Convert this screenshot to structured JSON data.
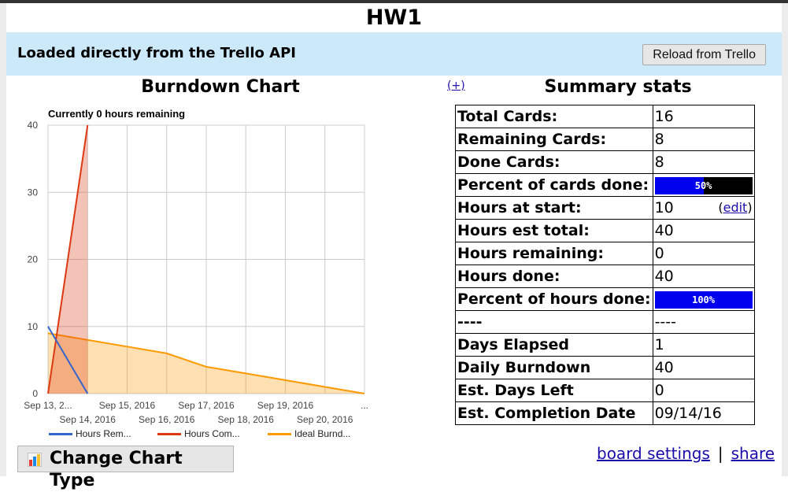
{
  "page": {
    "title": "HW1"
  },
  "banner": {
    "text": "Loaded directly from the Trello API",
    "reload_label": "Reload from Trello"
  },
  "burndown": {
    "title": "Burndown Chart",
    "plus_label": "(+)"
  },
  "summary": {
    "title": "Summary stats",
    "rows": [
      {
        "key": "Total Cards:",
        "value": "16"
      },
      {
        "key": "Remaining Cards:",
        "value": "8"
      },
      {
        "key": "Done Cards:",
        "value": "8"
      },
      {
        "key": "Percent of cards done:",
        "bar_label": "50%",
        "bar_fraction": 0.5
      },
      {
        "key": "Hours at start:",
        "value": "10",
        "edit_label": "edit"
      },
      {
        "key": "Hours est total:",
        "value": "40"
      },
      {
        "key": "Hours remaining:",
        "value": "0"
      },
      {
        "key": "Hours done:",
        "value": "40"
      },
      {
        "key": "Percent of hours done:",
        "bar_label": "100%",
        "bar_fraction": 1.0
      },
      {
        "key": "----",
        "value": "----"
      },
      {
        "key": "Days Elapsed",
        "value": "1"
      },
      {
        "key": "Daily Burndown",
        "value": "40"
      },
      {
        "key": "Est. Days Left",
        "value": "0"
      },
      {
        "key": "Est. Completion Date",
        "value": "09/14/16"
      }
    ]
  },
  "footer": {
    "change_chart_label": "Change Chart Type",
    "board_settings_label": "board settings",
    "separator": "|",
    "share_label": "share"
  },
  "colors": {
    "hours_remaining": "#3366cc",
    "hours_completed": "#dc3912",
    "ideal": "#ff9900",
    "banner": "#cce9f9"
  },
  "chart_data": {
    "type": "area",
    "title": "Currently 0 hours remaining",
    "ylim": [
      0,
      40
    ],
    "yticks": [
      0,
      10,
      20,
      30,
      40
    ],
    "xtick_labels_row1": [
      "Sep 13, 2...",
      "Sep 15, 2016",
      "Sep 17, 2016",
      "Sep 19, 2016",
      "..."
    ],
    "xtick_labels_row2": [
      "Sep 14, 2016",
      "Sep 16, 2016",
      "Sep 18, 2016",
      "Sep 20, 2016"
    ],
    "x": [
      "Sep 13, 2016",
      "Sep 14, 2016",
      "Sep 15, 2016",
      "Sep 16, 2016",
      "Sep 17, 2016",
      "Sep 18, 2016",
      "Sep 19, 2016",
      "Sep 20, 2016",
      "Sep 21, 2016"
    ],
    "grid": true,
    "legend_position": "bottom",
    "series": [
      {
        "name": "Hours Rem...",
        "style": "line",
        "points": [
          [
            0,
            10
          ],
          [
            1,
            0
          ]
        ]
      },
      {
        "name": "Hours Com...",
        "style": "area",
        "points": [
          [
            0,
            0
          ],
          [
            1,
            40
          ]
        ]
      },
      {
        "name": "Ideal Burnd...",
        "style": "area",
        "points": [
          [
            0,
            9
          ],
          [
            1,
            8
          ],
          [
            2,
            7
          ],
          [
            3,
            6
          ],
          [
            4,
            4
          ],
          [
            5,
            3
          ],
          [
            6,
            2
          ],
          [
            7,
            1
          ],
          [
            8,
            0
          ]
        ]
      }
    ]
  }
}
